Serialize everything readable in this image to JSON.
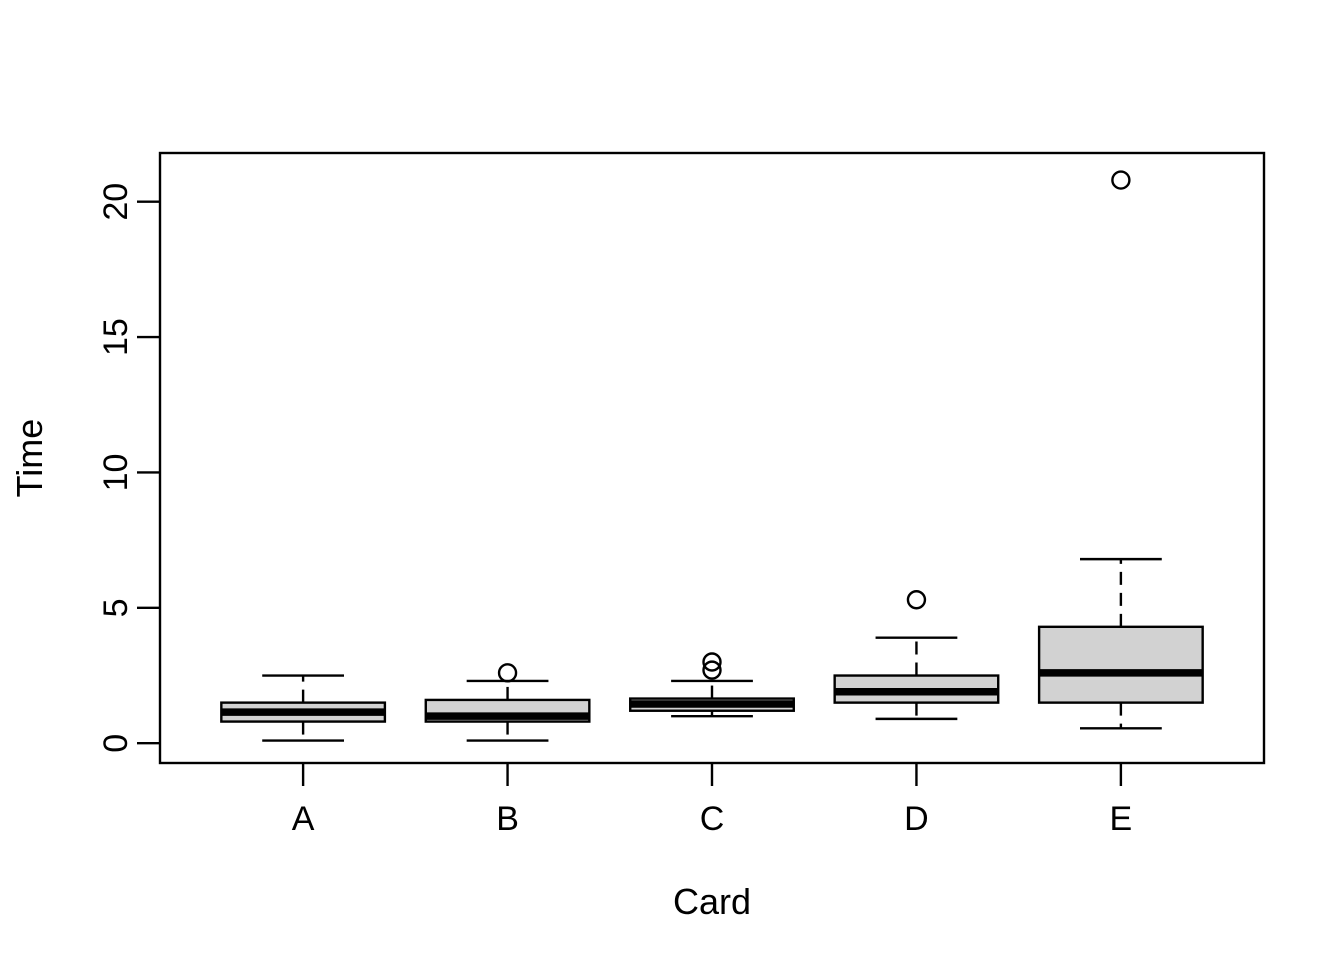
{
  "chart_data": {
    "type": "boxplot",
    "title": "",
    "xlabel": "Card",
    "ylabel": "Time",
    "categories": [
      "A",
      "B",
      "C",
      "D",
      "E"
    ],
    "y_ticks": [
      0,
      5,
      10,
      15,
      20
    ],
    "ylim": [
      -0.73,
      21.8
    ],
    "xlim": [
      0.3,
      5.7
    ],
    "box_width": 0.8,
    "grid": "off",
    "legend": "none",
    "series": [
      {
        "name": "A",
        "min": 0.1,
        "q1": 0.8,
        "median": 1.15,
        "q3": 1.5,
        "max": 2.5,
        "outliers": []
      },
      {
        "name": "B",
        "min": 0.1,
        "q1": 0.8,
        "median": 1.0,
        "q3": 1.6,
        "max": 2.3,
        "outliers": [
          2.6
        ]
      },
      {
        "name": "C",
        "min": 1.0,
        "q1": 1.2,
        "median": 1.45,
        "q3": 1.65,
        "max": 2.3,
        "outliers": [
          2.7,
          3.0
        ]
      },
      {
        "name": "D",
        "min": 0.9,
        "q1": 1.5,
        "median": 1.9,
        "q3": 2.5,
        "max": 3.9,
        "outliers": [
          5.3
        ]
      },
      {
        "name": "E",
        "min": 0.55,
        "q1": 1.5,
        "median": 2.6,
        "q3": 4.3,
        "max": 6.8,
        "outliers": [
          20.8
        ]
      }
    ],
    "colors": {
      "box_fill": "#d2d2d2",
      "line": "#000000",
      "background": "#ffffff",
      "text": "#000000"
    }
  }
}
